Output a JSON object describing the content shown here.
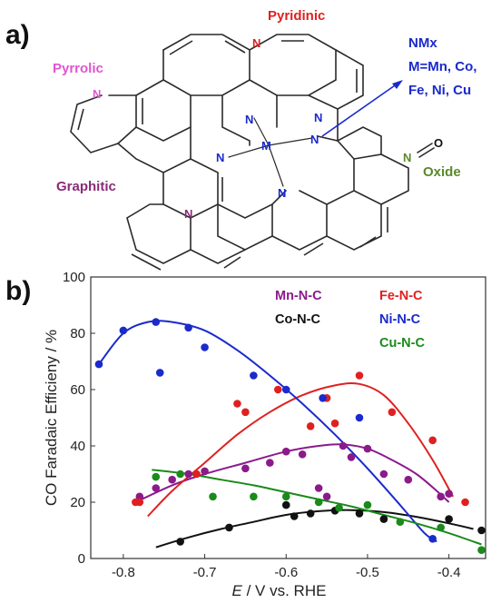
{
  "panel_a": {
    "label": "a)",
    "labels": {
      "pyridinic": "Pyridinic",
      "pyrrolic": "Pyrrolic",
      "graphitic": "Graphitic",
      "oxide": "Oxide",
      "nmx_line1": "NMx",
      "nmx_line2": "M=Mn, Co,",
      "nmx_line3": "Fe, Ni, Cu",
      "metal": "M",
      "nitrogen": "N",
      "oxygen": "O"
    },
    "colors": {
      "pyridinic": "#e02020",
      "pyrrolic": "#e055d0",
      "graphitic": "#8b2a78",
      "oxide": "#5a8a2a",
      "nmx": "#1a2acc",
      "neutral_N": "#1a2acc"
    }
  },
  "panel_b": {
    "label": "b)"
  },
  "chart_data": {
    "type": "scatter",
    "title": "",
    "xlabel_italic": "E",
    "xlabel_rest": " / V vs. RHE",
    "ylabel": "CO Faradaic Efficieny / %",
    "xlim": [
      -0.84,
      -0.355
    ],
    "ylim": [
      0,
      100
    ],
    "xticks": [
      -0.8,
      -0.7,
      -0.6,
      -0.5,
      -0.4
    ],
    "xtick_labels": [
      "-0.8",
      "-0.7",
      "-0.6",
      "-0.5",
      "-0.4"
    ],
    "yticks": [
      0,
      20,
      40,
      60,
      80,
      100
    ],
    "ytick_labels": [
      "0",
      "20",
      "40",
      "60",
      "80",
      "100"
    ],
    "grid": false,
    "legend_position": "top-right",
    "series": [
      {
        "name": "Mn-N-C",
        "color": "#8b1a8b",
        "points": [
          [
            -0.78,
            22
          ],
          [
            -0.76,
            25
          ],
          [
            -0.74,
            28
          ],
          [
            -0.72,
            30
          ],
          [
            -0.7,
            31
          ],
          [
            -0.65,
            32
          ],
          [
            -0.62,
            34
          ],
          [
            -0.6,
            38
          ],
          [
            -0.58,
            37
          ],
          [
            -0.56,
            25
          ],
          [
            -0.55,
            22
          ],
          [
            -0.53,
            40
          ],
          [
            -0.52,
            36
          ],
          [
            -0.5,
            39
          ],
          [
            -0.48,
            30
          ],
          [
            -0.45,
            28
          ],
          [
            -0.41,
            22
          ],
          [
            -0.4,
            23
          ]
        ],
        "fit": [
          [
            -0.785,
            20
          ],
          [
            -0.74,
            26
          ],
          [
            -0.7,
            30
          ],
          [
            -0.65,
            34
          ],
          [
            -0.6,
            38
          ],
          [
            -0.56,
            40
          ],
          [
            -0.53,
            40.5
          ],
          [
            -0.5,
            39
          ],
          [
            -0.47,
            35
          ],
          [
            -0.44,
            30
          ],
          [
            -0.415,
            24
          ],
          [
            -0.4,
            20
          ]
        ]
      },
      {
        "name": "Co-N-C",
        "color": "#111111",
        "points": [
          [
            -0.73,
            6
          ],
          [
            -0.67,
            11
          ],
          [
            -0.6,
            19
          ],
          [
            -0.59,
            15
          ],
          [
            -0.57,
            16
          ],
          [
            -0.54,
            17
          ],
          [
            -0.51,
            16
          ],
          [
            -0.48,
            14
          ],
          [
            -0.4,
            14
          ],
          [
            -0.36,
            10
          ]
        ],
        "fit": [
          [
            -0.76,
            4
          ],
          [
            -0.72,
            7.5
          ],
          [
            -0.68,
            10.5
          ],
          [
            -0.64,
            13
          ],
          [
            -0.6,
            15.5
          ],
          [
            -0.56,
            16.8
          ],
          [
            -0.52,
            17.2
          ],
          [
            -0.48,
            16.5
          ],
          [
            -0.44,
            14.8
          ],
          [
            -0.4,
            12.5
          ],
          [
            -0.37,
            10.5
          ]
        ]
      },
      {
        "name": "Fe-N-C",
        "color": "#e02020",
        "points": [
          [
            -0.785,
            20
          ],
          [
            -0.78,
            20
          ],
          [
            -0.71,
            30
          ],
          [
            -0.66,
            55
          ],
          [
            -0.65,
            52
          ],
          [
            -0.61,
            60
          ],
          [
            -0.57,
            47
          ],
          [
            -0.55,
            57
          ],
          [
            -0.54,
            48
          ],
          [
            -0.51,
            65
          ],
          [
            -0.47,
            52
          ],
          [
            -0.42,
            42
          ],
          [
            -0.38,
            20
          ]
        ],
        "fit": [
          [
            -0.77,
            15
          ],
          [
            -0.74,
            24
          ],
          [
            -0.7,
            34
          ],
          [
            -0.66,
            44
          ],
          [
            -0.62,
            52
          ],
          [
            -0.58,
            58
          ],
          [
            -0.54,
            61.5
          ],
          [
            -0.51,
            62
          ],
          [
            -0.48,
            58
          ],
          [
            -0.45,
            48
          ],
          [
            -0.42,
            35
          ],
          [
            -0.395,
            22
          ]
        ]
      },
      {
        "name": "Ni-N-C",
        "color": "#1a2acc",
        "points": [
          [
            -0.83,
            69
          ],
          [
            -0.8,
            81
          ],
          [
            -0.76,
            84
          ],
          [
            -0.755,
            66
          ],
          [
            -0.72,
            82
          ],
          [
            -0.7,
            75
          ],
          [
            -0.64,
            65
          ],
          [
            -0.6,
            60
          ],
          [
            -0.555,
            57
          ],
          [
            -0.51,
            50
          ],
          [
            -0.42,
            7
          ]
        ],
        "fit": [
          [
            -0.83,
            69
          ],
          [
            -0.8,
            80
          ],
          [
            -0.77,
            84
          ],
          [
            -0.74,
            84
          ],
          [
            -0.7,
            81
          ],
          [
            -0.66,
            74
          ],
          [
            -0.62,
            65
          ],
          [
            -0.58,
            55
          ],
          [
            -0.54,
            44
          ],
          [
            -0.5,
            32
          ],
          [
            -0.46,
            19
          ],
          [
            -0.43,
            9
          ],
          [
            -0.415,
            6
          ]
        ]
      },
      {
        "name": "Cu-N-C",
        "color": "#1a8a1a",
        "points": [
          [
            -0.76,
            29
          ],
          [
            -0.73,
            30
          ],
          [
            -0.69,
            22
          ],
          [
            -0.64,
            22
          ],
          [
            -0.6,
            22
          ],
          [
            -0.56,
            20
          ],
          [
            -0.535,
            18
          ],
          [
            -0.5,
            19
          ],
          [
            -0.46,
            13
          ],
          [
            -0.41,
            11
          ],
          [
            -0.36,
            3
          ]
        ],
        "fit": [
          [
            -0.765,
            31.5
          ],
          [
            -0.72,
            30
          ],
          [
            -0.68,
            28
          ],
          [
            -0.64,
            26
          ],
          [
            -0.6,
            23.5
          ],
          [
            -0.56,
            21
          ],
          [
            -0.52,
            18.5
          ],
          [
            -0.48,
            15.5
          ],
          [
            -0.44,
            12.5
          ],
          [
            -0.4,
            9
          ],
          [
            -0.36,
            5
          ]
        ]
      }
    ]
  }
}
